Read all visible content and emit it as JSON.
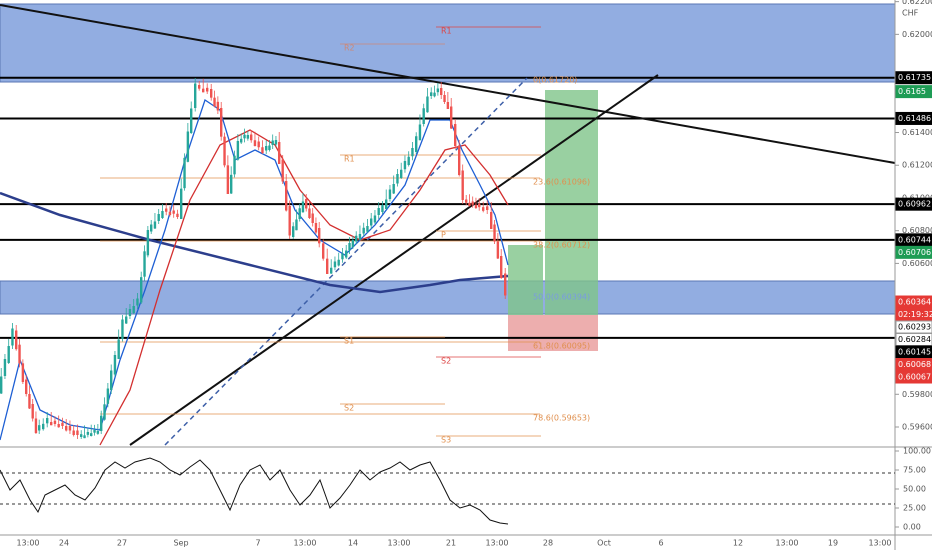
{
  "price_axis": {
    "unit": "CHF",
    "ylim": [
      0.5949,
      0.6221
    ],
    "ticks": [
      {
        "value": 0.622,
        "label": "0.62200"
      },
      {
        "value": 0.62,
        "label": "0.62000"
      },
      {
        "value": 0.614,
        "label": "0.61400"
      },
      {
        "value": 0.612,
        "label": "0.61200"
      },
      {
        "value": 0.61,
        "label": "0.61000"
      },
      {
        "value": 0.608,
        "label": "0.60800"
      },
      {
        "value": 0.606,
        "label": "0.60600"
      },
      {
        "value": 0.598,
        "label": "0.59800"
      },
      {
        "value": 0.596,
        "label": "0.59600"
      }
    ]
  },
  "price_tags": [
    {
      "value": 0.61735,
      "style": "black"
    },
    {
      "value": 0.6165,
      "style": "green"
    },
    {
      "value": 0.61486,
      "style": "black"
    },
    {
      "value": 0.60962,
      "style": "black"
    },
    {
      "value": 0.60744,
      "style": "black"
    },
    {
      "value": 0.60706,
      "style": "green"
    },
    {
      "value": 0.60364,
      "style": "red"
    },
    {
      "value": 0.60293,
      "style": "white"
    },
    {
      "value": 0.60284,
      "style": "white"
    },
    {
      "value": 0.60145,
      "style": "black"
    },
    {
      "value": 0.60068,
      "style": "red"
    },
    {
      "value": 0.60067,
      "style": "red"
    }
  ],
  "countdown": "02:19:32",
  "annotations": [
    "R1",
    "R2",
    "0(0.61720)",
    "R1",
    "23.6(0.61096)",
    "P",
    "38.2(0.60712)",
    "50.0(0.60394)",
    "S1",
    "61.8(0.60095)",
    "S2",
    "S2",
    "78.6(0.59653)",
    "S3"
  ],
  "time_axis": [
    "13:00",
    "24",
    "27",
    "Sep",
    "7",
    "13:00",
    "14",
    "13:00",
    "21",
    "13:00",
    "28",
    "Oct",
    "6",
    "12",
    "13:00",
    "19",
    "13:00"
  ],
  "rsi_axis": {
    "ylim": [
      0,
      100
    ],
    "ticks": [
      {
        "value": 100,
        "label": "100.00"
      },
      {
        "value": 75,
        "label": "75.00"
      },
      {
        "value": 50,
        "label": "50.00"
      },
      {
        "value": 25,
        "label": "25.00"
      },
      {
        "value": 0,
        "label": "0.00"
      }
    ]
  }
}
